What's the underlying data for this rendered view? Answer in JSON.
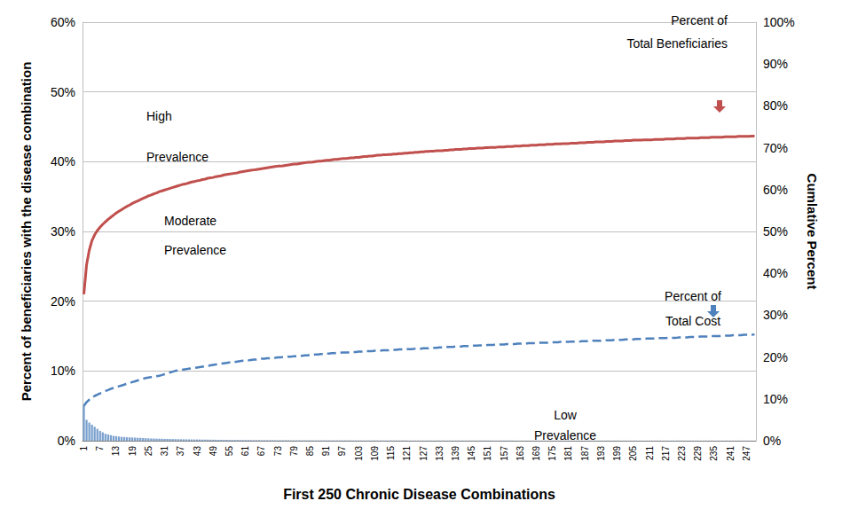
{
  "chart_data": {
    "type": "bar",
    "x_label": "First 250 Chronic Disease Combinations",
    "y_label": "Percent of beneficiaries with the disease combination",
    "y2_label": "Cumlative Percent",
    "annotations": [
      "High\nPrevalence",
      "Moderate\nPrevalence",
      "Low\nPrevalence"
    ],
    "grid": true,
    "ylim": [
      0,
      60
    ],
    "yticks": [
      {
        "value": 0,
        "label": "0%"
      },
      {
        "value": 10,
        "label": "10%"
      },
      {
        "value": 20,
        "label": "20%"
      },
      {
        "value": 30,
        "label": "30%"
      },
      {
        "value": 40,
        "label": "40%"
      },
      {
        "value": 50,
        "label": "50%"
      },
      {
        "value": 60,
        "label": "60%"
      }
    ],
    "y2lim": [
      0,
      100
    ],
    "y2ticks": [
      {
        "value": 0,
        "label": "0%"
      },
      {
        "value": 10,
        "label": "10%"
      },
      {
        "value": 20,
        "label": "20%"
      },
      {
        "value": 30,
        "label": "30%"
      },
      {
        "value": 40,
        "label": "40%"
      },
      {
        "value": 50,
        "label": "50%"
      },
      {
        "value": 60,
        "label": "60%"
      },
      {
        "value": 70,
        "label": "70%"
      },
      {
        "value": 80,
        "label": "80%"
      },
      {
        "value": 90,
        "label": "90%"
      },
      {
        "value": 100,
        "label": "100%"
      }
    ],
    "categories": [
      1,
      null,
      null,
      null,
      null,
      null,
      7,
      null,
      null,
      null,
      null,
      null,
      13,
      null,
      null,
      null,
      null,
      null,
      19,
      null,
      null,
      null,
      null,
      null,
      25,
      null,
      null,
      null,
      null,
      null,
      31,
      null,
      null,
      null,
      null,
      null,
      37,
      null,
      null,
      null,
      null,
      null,
      43,
      null,
      null,
      null,
      null,
      null,
      49,
      null,
      null,
      null,
      null,
      null,
      55,
      null,
      null,
      null,
      null,
      null,
      61,
      null,
      null,
      null,
      null,
      null,
      67,
      null,
      null,
      null,
      null,
      null,
      73,
      null,
      null,
      null,
      null,
      null,
      79,
      null,
      null,
      null,
      null,
      null,
      85,
      null,
      null,
      null,
      null,
      null,
      91,
      null,
      null,
      null,
      null,
      null,
      97,
      null,
      null,
      null,
      null,
      null,
      103,
      null,
      null,
      null,
      null,
      null,
      109,
      null,
      null,
      null,
      null,
      null,
      115,
      null,
      null,
      null,
      null,
      null,
      121,
      null,
      null,
      null,
      null,
      null,
      127,
      null,
      null,
      null,
      null,
      null,
      133,
      null,
      null,
      null,
      null,
      null,
      139,
      null,
      null,
      null,
      null,
      null,
      145,
      null,
      null,
      null,
      null,
      null,
      151,
      null,
      null,
      null,
      null,
      null,
      157,
      null,
      null,
      null,
      null,
      null,
      163,
      null,
      null,
      null,
      null,
      null,
      169,
      null,
      null,
      null,
      null,
      null,
      175,
      null,
      null,
      null,
      null,
      null,
      181,
      null,
      null,
      null,
      null,
      null,
      187,
      null,
      null,
      null,
      null,
      null,
      193,
      null,
      null,
      null,
      null,
      null,
      199,
      null,
      null,
      null,
      null,
      null,
      205,
      null,
      null,
      null,
      null,
      null,
      211,
      null,
      null,
      null,
      null,
      null,
      217,
      null,
      null,
      null,
      null,
      null,
      223,
      null,
      null,
      null,
      null,
      null,
      229,
      null,
      null,
      null,
      null,
      null,
      235,
      null,
      null,
      null,
      null,
      null,
      241,
      null,
      null,
      null,
      null,
      null,
      247,
      null,
      null,
      null
    ],
    "series": [
      {
        "type": "bar",
        "color": "#4f81bd",
        "values": [
          5.0,
          3.0,
          2.6,
          2.3,
          2.0,
          1.7,
          1.4,
          1.2,
          1.0,
          0.9,
          0.8,
          0.7,
          0.65,
          0.6,
          0.55,
          0.52,
          0.5,
          0.48,
          0.46,
          0.44,
          0.42,
          0.4,
          0.38,
          0.36,
          0.34,
          0.32,
          0.31,
          0.3,
          0.29,
          0.28,
          0.27,
          0.26,
          0.25,
          0.24,
          0.23,
          0.22,
          0.21,
          0.2,
          0.2,
          0.19,
          0.18,
          0.18,
          0.17,
          0.17,
          0.16,
          0.16,
          0.15,
          0.15,
          0.14,
          0.14,
          0.13,
          0.13,
          0.12,
          0.12,
          0.12,
          0.11,
          0.11,
          0.11,
          0.1,
          0.1,
          0.1,
          0.1,
          0.09,
          0.09,
          0.09,
          0.09,
          0.08,
          0.08,
          0.08,
          0.08,
          0.08,
          0.07,
          0.07,
          0.07,
          0.07,
          0.07,
          0.07,
          0.06,
          0.06,
          0.06,
          0.06,
          0.06,
          0.06,
          0.06,
          0.06,
          0.05,
          0.05,
          0.05,
          0.05,
          0.05,
          0.05,
          0.05,
          0.05,
          0.05,
          0.05,
          0.05,
          0.05,
          0.05,
          0.05,
          0.05,
          0.04,
          0.04,
          0.04,
          0.04,
          0.04,
          0.04,
          0.04,
          0.04,
          0.04,
          0.04,
          0.04,
          0.04,
          0.04,
          0.04,
          0.04,
          0.04,
          0.04,
          0.04,
          0.04,
          0.04,
          0.03,
          0.03,
          0.03,
          0.03,
          0.03,
          0.03,
          0.03,
          0.03,
          0.03,
          0.03,
          0.03,
          0.03,
          0.03,
          0.03,
          0.03,
          0.03,
          0.03,
          0.03,
          0.03,
          0.03,
          0.03,
          0.03,
          0.03,
          0.03,
          0.03,
          0.03,
          0.03,
          0.03,
          0.03,
          0.03,
          0.03,
          0.03,
          0.03,
          0.03,
          0.03,
          0.03,
          0.03,
          0.03,
          0.03,
          0.03,
          0.02,
          0.02,
          0.02,
          0.02,
          0.02,
          0.02,
          0.02,
          0.02,
          0.02,
          0.02,
          0.02,
          0.02,
          0.02,
          0.02,
          0.02,
          0.02,
          0.02,
          0.02,
          0.02,
          0.02,
          0.02,
          0.02,
          0.02,
          0.02,
          0.02,
          0.02,
          0.02,
          0.02,
          0.02,
          0.02,
          0.02,
          0.02,
          0.02,
          0.02,
          0.02,
          0.02,
          0.02,
          0.02,
          0.02,
          0.02,
          0.02,
          0.02,
          0.02,
          0.02,
          0.02,
          0.02,
          0.02,
          0.02,
          0.02,
          0.02,
          0.02,
          0.02,
          0.02,
          0.02,
          0.02,
          0.02,
          0.02,
          0.02,
          0.02,
          0.02,
          0.02,
          0.02,
          0.02,
          0.02,
          0.02,
          0.02,
          0.02,
          0.02,
          0.02,
          0.02,
          0.02,
          0.02,
          0.02,
          0.02,
          0.02,
          0.02,
          0.02,
          0.02,
          0.02,
          0.02,
          0.02,
          0.02,
          0.02,
          0.02,
          0.02,
          0.02,
          0.02,
          0.02,
          0.02,
          0.02
        ]
      },
      {
        "name": "Percent of\nTotal Beneficiaries",
        "type": "line",
        "axis": "y2",
        "color": "#c0504d",
        "line_style": "solid",
        "marker": "none",
        "values": [
          35,
          42,
          45.5,
          47.8,
          49.2,
          50.2,
          51.0,
          51.7,
          52.3,
          52.9,
          53.4,
          53.9,
          54.4,
          54.8,
          55.2,
          55.6,
          56.0,
          56.3,
          56.7,
          57.0,
          57.3,
          57.6,
          57.9,
          58.2,
          58.5,
          58.7,
          59.0,
          59.2,
          59.5,
          59.7,
          59.9,
          60.1,
          60.3,
          60.5,
          60.7,
          60.9,
          61.1,
          61.3,
          61.4,
          61.6,
          61.8,
          61.9,
          62.1,
          62.2,
          62.4,
          62.5,
          62.7,
          62.8,
          62.9,
          63.1,
          63.2,
          63.3,
          63.5,
          63.6,
          63.7,
          63.8,
          63.9,
          64.0,
          64.2,
          64.3,
          64.4,
          64.5,
          64.6,
          64.7,
          64.8,
          64.9,
          65.0,
          65.1,
          65.2,
          65.3,
          65.4,
          65.5,
          65.6,
          65.6,
          65.7,
          65.8,
          65.9,
          66.0,
          66.1,
          66.1,
          66.2,
          66.3,
          66.4,
          66.5,
          66.5,
          66.6,
          66.7,
          66.8,
          66.8,
          66.9,
          67.0,
          67.0,
          67.1,
          67.2,
          67.2,
          67.3,
          67.4,
          67.4,
          67.5,
          67.6,
          67.6,
          67.7,
          67.7,
          67.8,
          67.9,
          67.9,
          68.0,
          68.0,
          68.1,
          68.2,
          68.2,
          68.3,
          68.3,
          68.4,
          68.4,
          68.5,
          68.5,
          68.6,
          68.6,
          68.7,
          68.7,
          68.8,
          68.8,
          68.9,
          68.9,
          69.0,
          69.0,
          69.1,
          69.1,
          69.2,
          69.2,
          69.3,
          69.3,
          69.3,
          69.4,
          69.4,
          69.5,
          69.5,
          69.6,
          69.6,
          69.6,
          69.7,
          69.7,
          69.8,
          69.8,
          69.8,
          69.9,
          69.9,
          69.9,
          70.0,
          70.0,
          70.1,
          70.1,
          70.1,
          70.2,
          70.2,
          70.2,
          70.3,
          70.3,
          70.3,
          70.4,
          70.4,
          70.4,
          70.5,
          70.5,
          70.5,
          70.6,
          70.6,
          70.6,
          70.7,
          70.7,
          70.7,
          70.8,
          70.8,
          70.8,
          70.9,
          70.9,
          70.9,
          71.0,
          71.0,
          71.0,
          71.1,
          71.1,
          71.1,
          71.2,
          71.2,
          71.2,
          71.3,
          71.3,
          71.3,
          71.4,
          71.4,
          71.4,
          71.4,
          71.5,
          71.5,
          71.5,
          71.6,
          71.6,
          71.6,
          71.6,
          71.7,
          71.7,
          71.7,
          71.8,
          71.8,
          71.8,
          71.8,
          71.9,
          71.9,
          71.9,
          71.9,
          72.0,
          72.0,
          72.0,
          72.0,
          72.1,
          72.1,
          72.1,
          72.1,
          72.2,
          72.2,
          72.2,
          72.2,
          72.3,
          72.3,
          72.3,
          72.3,
          72.3,
          72.4,
          72.4,
          72.4,
          72.4,
          72.5,
          72.5,
          72.5,
          72.5,
          72.5,
          72.6,
          72.6,
          72.6,
          72.6,
          72.6,
          72.7,
          72.7,
          72.7,
          72.7,
          72.7,
          72.8,
          72.8
        ]
      },
      {
        "name": "Percent of\nTotal Cost",
        "type": "line",
        "axis": "y2",
        "color": "#4f81bd",
        "line_style": "dashed",
        "marker": "none",
        "values": [
          8.3,
          9.2,
          9.8,
          10.3,
          10.7,
          11.0,
          11.3,
          11.6,
          11.9,
          12.1,
          12.4,
          12.6,
          12.8,
          13.0,
          13.2,
          13.4,
          13.6,
          13.8,
          14.0,
          14.2,
          14.4,
          14.6,
          14.8,
          15.0,
          15.1,
          15.2,
          15.3,
          15.4,
          15.5,
          15.7,
          15.9,
          16.1,
          16.3,
          16.5,
          16.7,
          16.8,
          16.9,
          17.0,
          17.1,
          17.2,
          17.3,
          17.4,
          17.5,
          17.6,
          17.7,
          17.8,
          17.9,
          18.0,
          18.1,
          18.2,
          18.3,
          18.4,
          18.5,
          18.6,
          18.7,
          18.8,
          18.8,
          18.9,
          19.0,
          19.1,
          19.2,
          19.2,
          19.3,
          19.4,
          19.4,
          19.5,
          19.6,
          19.6,
          19.7,
          19.7,
          19.8,
          19.8,
          19.9,
          19.9,
          20.0,
          20.0,
          20.1,
          20.1,
          20.2,
          20.2,
          20.3,
          20.3,
          20.4,
          20.4,
          20.5,
          20.5,
          20.6,
          20.6,
          20.7,
          20.7,
          20.8,
          20.8,
          20.9,
          20.9,
          21.0,
          21.0,
          21.1,
          21.1,
          21.1,
          21.2,
          21.2,
          21.2,
          21.3,
          21.3,
          21.3,
          21.4,
          21.4,
          21.4,
          21.5,
          21.5,
          21.5,
          21.6,
          21.6,
          21.6,
          21.7,
          21.7,
          21.7,
          21.8,
          21.8,
          21.8,
          21.9,
          21.9,
          21.9,
          22.0,
          22.0,
          22.0,
          22.1,
          22.1,
          22.1,
          22.2,
          22.2,
          22.2,
          22.3,
          22.3,
          22.3,
          22.4,
          22.4,
          22.4,
          22.5,
          22.5,
          22.5,
          22.6,
          22.6,
          22.6,
          22.7,
          22.7,
          22.7,
          22.8,
          22.8,
          22.8,
          22.9,
          22.9,
          22.9,
          23.0,
          23.0,
          23.0,
          23.0,
          23.1,
          23.1,
          23.1,
          23.1,
          23.2,
          23.2,
          23.2,
          23.2,
          23.3,
          23.3,
          23.3,
          23.3,
          23.4,
          23.4,
          23.4,
          23.4,
          23.5,
          23.5,
          23.5,
          23.5,
          23.6,
          23.6,
          23.6,
          23.6,
          23.7,
          23.7,
          23.7,
          23.7,
          23.8,
          23.8,
          23.8,
          23.8,
          23.9,
          23.9,
          23.9,
          23.9,
          24.0,
          24.0,
          24.0,
          24.0,
          24.1,
          24.1,
          24.1,
          24.1,
          24.2,
          24.2,
          24.2,
          24.2,
          24.3,
          24.3,
          24.3,
          24.3,
          24.4,
          24.4,
          24.4,
          24.4,
          24.5,
          24.5,
          24.5,
          24.5,
          24.6,
          24.6,
          24.6,
          24.6,
          24.7,
          24.7,
          24.7,
          24.7,
          24.8,
          24.8,
          24.8,
          24.8,
          24.9,
          24.9,
          24.9,
          24.9,
          25.0,
          25.0,
          25.0,
          25.0,
          25.1,
          25.1,
          25.1,
          25.1,
          25.2,
          25.2,
          25.2,
          25.2,
          25.3,
          25.3,
          25.3,
          25.3,
          25.4
        ]
      }
    ]
  }
}
